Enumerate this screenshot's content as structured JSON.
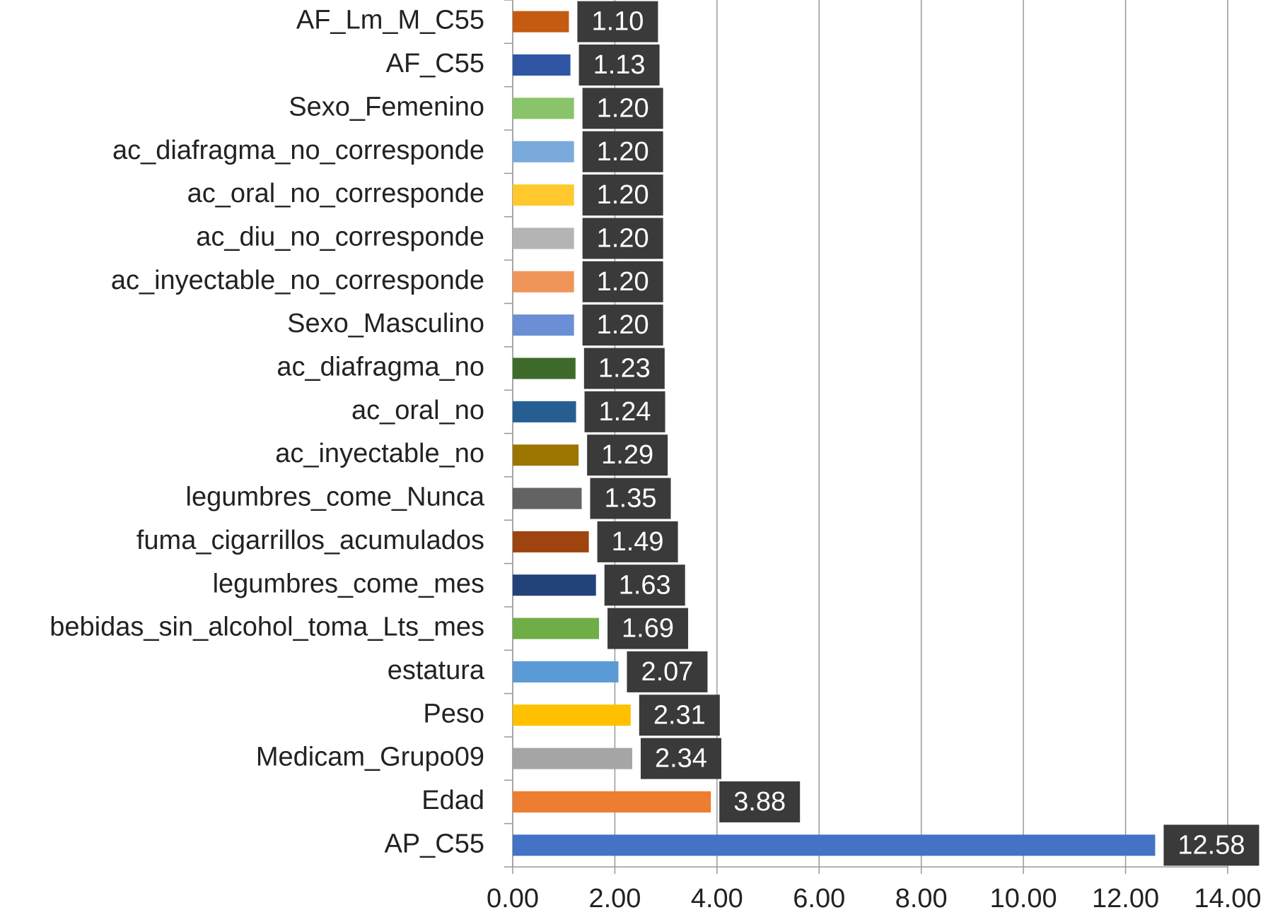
{
  "chart_data": {
    "type": "bar",
    "orientation": "horizontal",
    "categories": [
      "AF_Lm_M_C55",
      "AF_C55",
      "Sexo_Femenino",
      "ac_diafragma_no_corresponde",
      "ac_oral_no_corresponde",
      "ac_diu_no_corresponde",
      "ac_inyectable_no_corresponde",
      "Sexo_Masculino",
      "ac_diafragma_no",
      "ac_oral_no",
      "ac_inyectable_no",
      "legumbres_come_Nunca",
      "fuma_cigarrillos_acumulados",
      "legumbres_come_mes",
      "bebidas_sin_alcohol_toma_Lts_mes",
      "estatura",
      "Peso",
      "Medicam_Grupo09",
      "Edad",
      "AP_C55"
    ],
    "values": [
      1.1,
      1.13,
      1.2,
      1.2,
      1.2,
      1.2,
      1.2,
      1.2,
      1.23,
      1.24,
      1.29,
      1.35,
      1.49,
      1.63,
      1.69,
      2.07,
      2.31,
      2.34,
      3.88,
      12.58
    ],
    "value_labels": [
      "1.10",
      "1.13",
      "1.20",
      "1.20",
      "1.20",
      "1.20",
      "1.20",
      "1.20",
      "1.23",
      "1.24",
      "1.29",
      "1.35",
      "1.49",
      "1.63",
      "1.69",
      "2.07",
      "2.31",
      "2.34",
      "3.88",
      "12.58"
    ],
    "colors": [
      "#c55a11",
      "#2f55a4",
      "#8ac46a",
      "#7aa9dc",
      "#ffc92e",
      "#b4b4b4",
      "#f0955a",
      "#6b8fd4",
      "#3e6b2b",
      "#265e91",
      "#9c7500",
      "#636363",
      "#9e440e",
      "#23427a",
      "#6fad47",
      "#5b9bd5",
      "#ffc000",
      "#a5a5a5",
      "#ed7d31",
      "#4472c4"
    ],
    "xlim": [
      0,
      14
    ],
    "xticks": [
      {
        "value": 0,
        "label": "0.00"
      },
      {
        "value": 2,
        "label": "2.00"
      },
      {
        "value": 4,
        "label": "4.00"
      },
      {
        "value": 6,
        "label": "6.00"
      },
      {
        "value": 8,
        "label": "8.00"
      },
      {
        "value": 10,
        "label": "10.00"
      },
      {
        "value": 12,
        "label": "12.00"
      },
      {
        "value": 14,
        "label": "14.00"
      }
    ],
    "grid": true
  }
}
